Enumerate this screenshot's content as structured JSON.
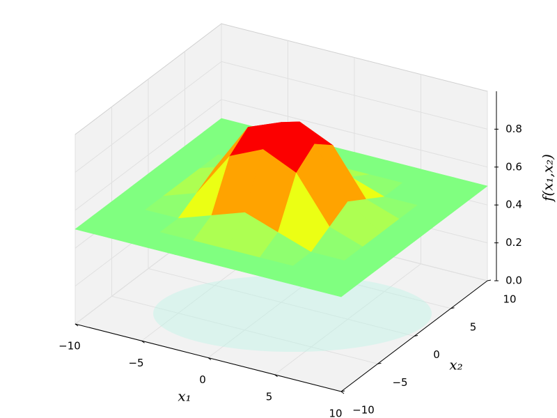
{
  "chart_data": {
    "type": "surface",
    "colormap": "jet",
    "x1": [
      -10,
      -7.5,
      -5,
      -2.5,
      0,
      2.5,
      5,
      7.5,
      10
    ],
    "x2": [
      -10,
      -7.5,
      -5,
      -2.5,
      0,
      2.5,
      5,
      7.5,
      10
    ],
    "z": [
      [
        0.5,
        0.5,
        0.5,
        0.5,
        0.5,
        0.5,
        0.5,
        0.5,
        0.5
      ],
      [
        0.5,
        0.5,
        0.5,
        0.5,
        0.5,
        0.5,
        0.5,
        0.5,
        0.5
      ],
      [
        0.5,
        0.5,
        0.5,
        0.56,
        0.62,
        0.56,
        0.5,
        0.5,
        0.5
      ],
      [
        0.5,
        0.5,
        0.56,
        0.8,
        0.88,
        0.8,
        0.56,
        0.5,
        0.5
      ],
      [
        0.5,
        0.5,
        0.62,
        0.88,
        0.95,
        0.88,
        0.62,
        0.5,
        0.5
      ],
      [
        0.5,
        0.5,
        0.56,
        0.8,
        0.88,
        0.8,
        0.56,
        0.5,
        0.5
      ],
      [
        0.5,
        0.5,
        0.5,
        0.56,
        0.62,
        0.56,
        0.5,
        0.5,
        0.5
      ],
      [
        0.5,
        0.5,
        0.5,
        0.5,
        0.5,
        0.5,
        0.5,
        0.5,
        0.5
      ],
      [
        0.5,
        0.5,
        0.5,
        0.5,
        0.5,
        0.5,
        0.5,
        0.5,
        0.5
      ]
    ],
    "x1_label": "x₁",
    "x2_label": "x₂",
    "z_label": "f(x₁,x₂)",
    "x1lim": [
      -10,
      10
    ],
    "x2lim": [
      -10,
      10
    ],
    "zlim": [
      0,
      1
    ],
    "x1ticks": [
      {
        "value": -10,
        "label": "−10"
      },
      {
        "value": -5,
        "label": "−5"
      },
      0,
      5,
      10
    ],
    "x2ticks": [
      {
        "value": -10,
        "label": "−10"
      },
      {
        "value": -5,
        "label": "−5"
      },
      0,
      5,
      10
    ],
    "zticks": [
      {
        "value": 0,
        "label": "0.0"
      },
      0.2,
      0.4,
      0.6,
      0.8
    ],
    "grid": true
  }
}
